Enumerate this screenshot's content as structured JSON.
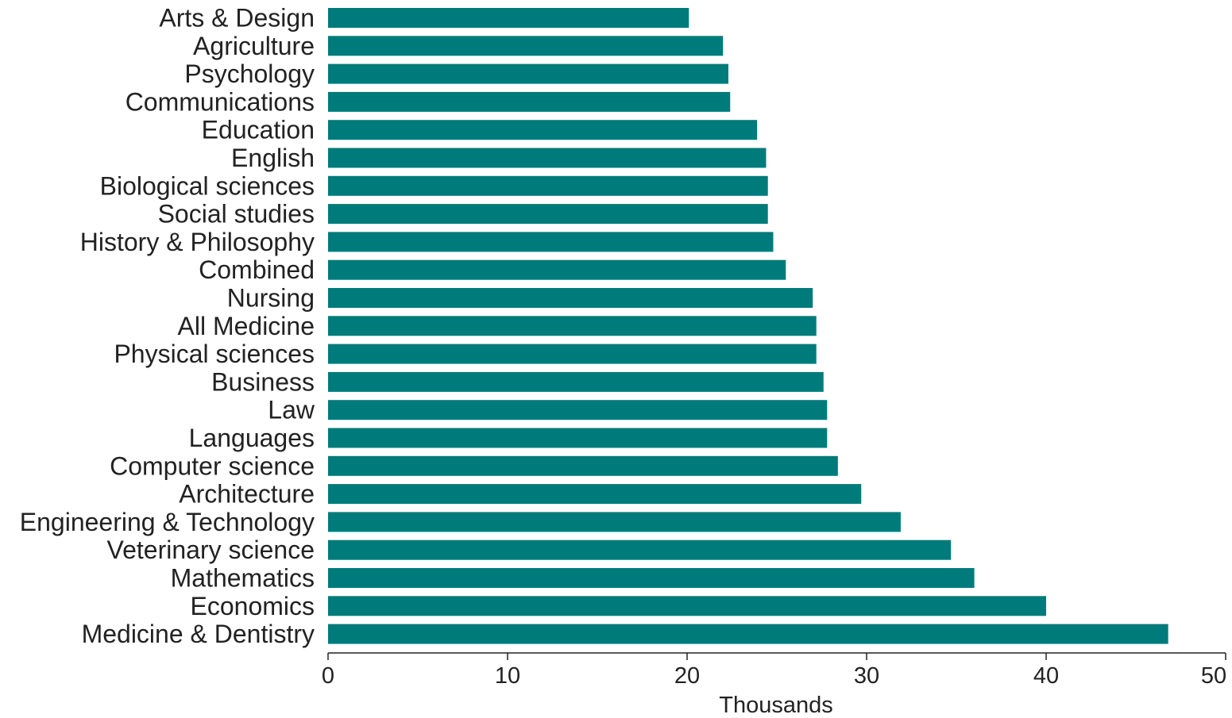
{
  "chart_data": {
    "type": "bar",
    "orientation": "horizontal",
    "categories": [
      "Arts & Design",
      "Agriculture",
      "Psychology",
      "Communications",
      "Education",
      "English",
      "Biological sciences",
      "Social studies",
      "History & Philosophy",
      "Combined",
      "Nursing",
      "All Medicine",
      "Physical sciences",
      "Business",
      "Law",
      "Languages",
      "Computer science",
      "Architecture",
      "Engineering & Technology",
      "Veterinary science",
      "Mathematics",
      "Economics",
      "Medicine & Dentistry"
    ],
    "values": [
      20.1,
      22.0,
      22.3,
      22.4,
      23.9,
      24.4,
      24.5,
      24.5,
      24.8,
      25.5,
      27.0,
      27.2,
      27.2,
      27.6,
      27.8,
      27.8,
      28.4,
      29.7,
      31.9,
      34.7,
      36.0,
      40.0,
      46.8
    ],
    "xlabel": "Thousands",
    "ylabel": "",
    "title": "",
    "xlim": [
      0,
      50
    ],
    "xticks": [
      "0",
      "10",
      "20",
      "30",
      "40",
      "50"
    ],
    "bar_color": "#007b7b",
    "grid": false,
    "legend": "none"
  }
}
